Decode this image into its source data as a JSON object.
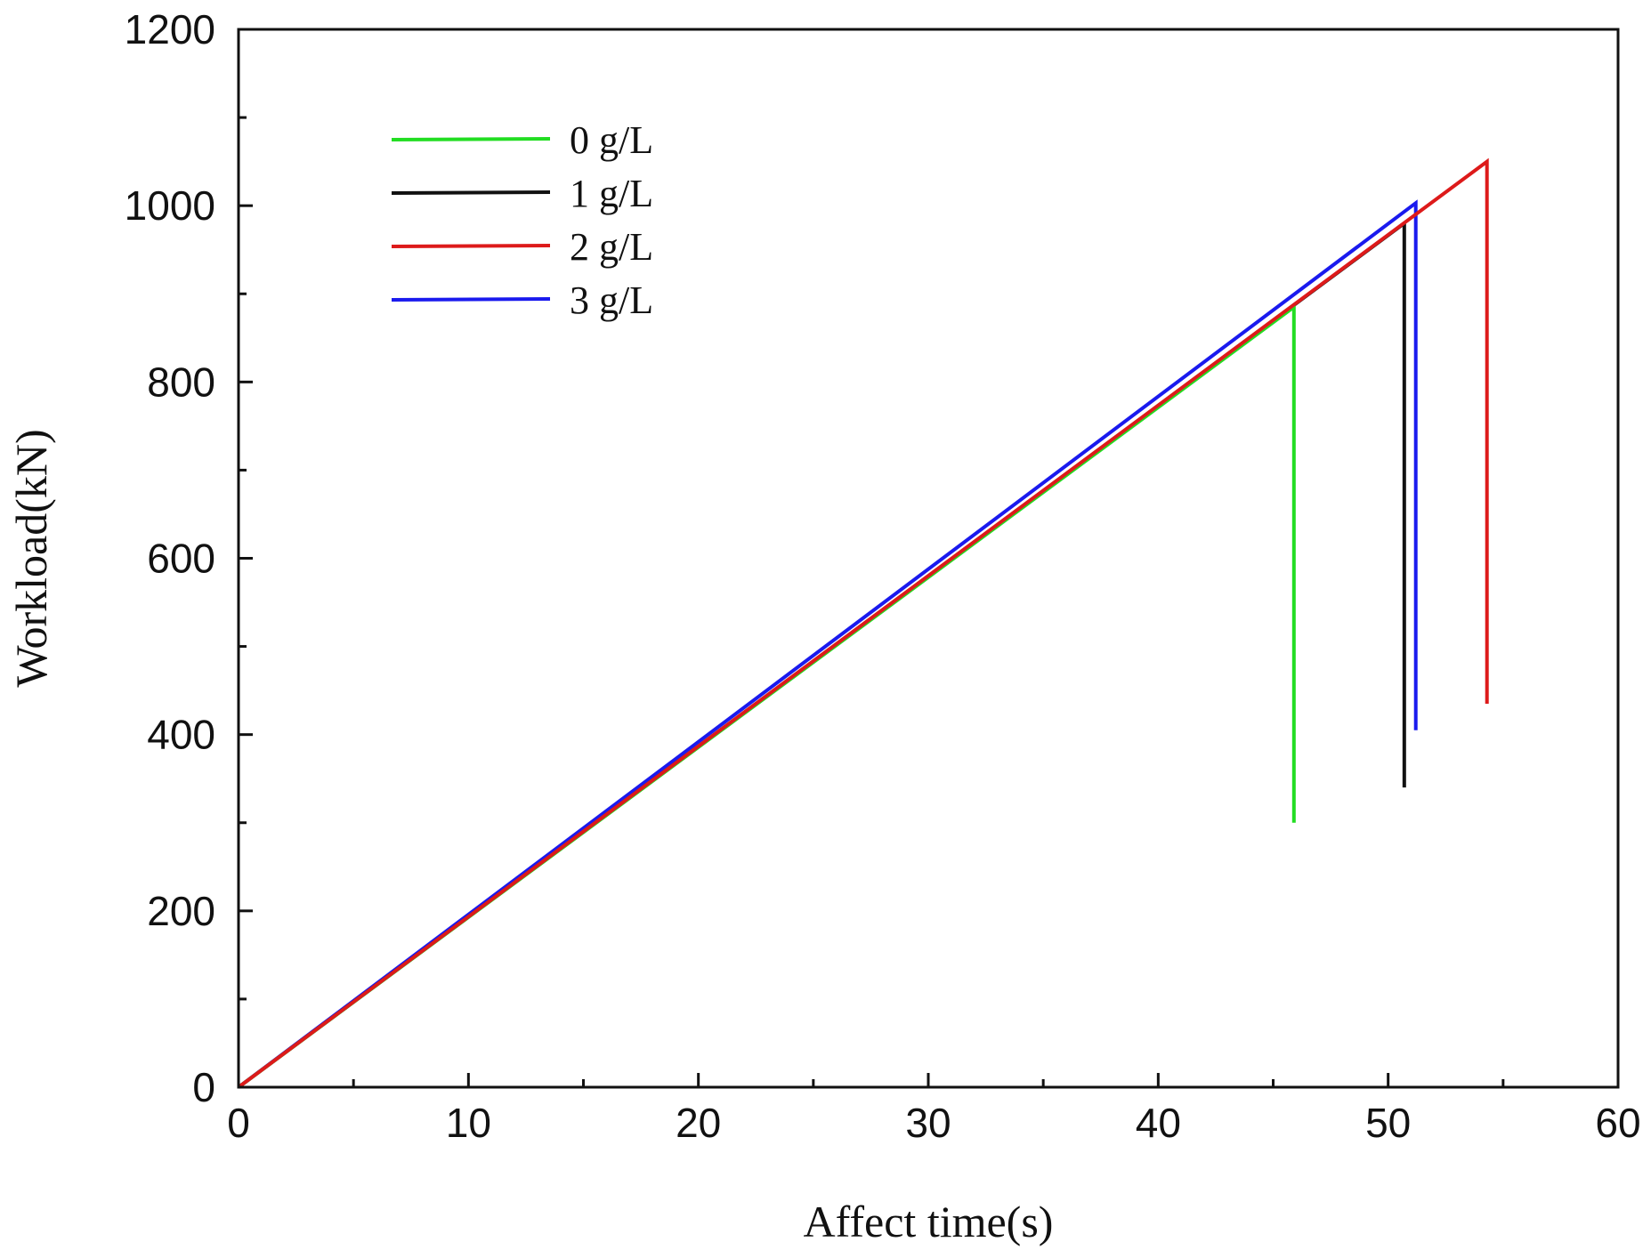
{
  "chart_data": {
    "type": "line",
    "title": "",
    "xlabel": "Affect time(s)",
    "ylabel": "Workload(kN)",
    "xlim": [
      0,
      60
    ],
    "ylim": [
      0,
      1200
    ],
    "x_ticks": [
      0,
      10,
      20,
      30,
      40,
      50,
      60
    ],
    "y_ticks": [
      0,
      200,
      400,
      600,
      800,
      1000,
      1200
    ],
    "x_minor_step": 5,
    "y_minor_step": 100,
    "grid": false,
    "legend_position": "top-left",
    "series": [
      {
        "name": "0 g/L",
        "color": "#22dd22",
        "points": [
          [
            0,
            0
          ],
          [
            45.9,
            885
          ],
          [
            45.9,
            300
          ]
        ]
      },
      {
        "name": "1 g/L",
        "color": "#111111",
        "points": [
          [
            0,
            0
          ],
          [
            50.7,
            980
          ],
          [
            50.7,
            340
          ]
        ]
      },
      {
        "name": "2 g/L",
        "color": "#dd1a1a",
        "points": [
          [
            0,
            0
          ],
          [
            54.3,
            1050
          ],
          [
            54.3,
            435
          ]
        ]
      },
      {
        "name": "3 g/L",
        "color": "#1a1aee",
        "points": [
          [
            0,
            0
          ],
          [
            51.2,
            1003
          ],
          [
            51.2,
            405
          ]
        ]
      }
    ]
  }
}
